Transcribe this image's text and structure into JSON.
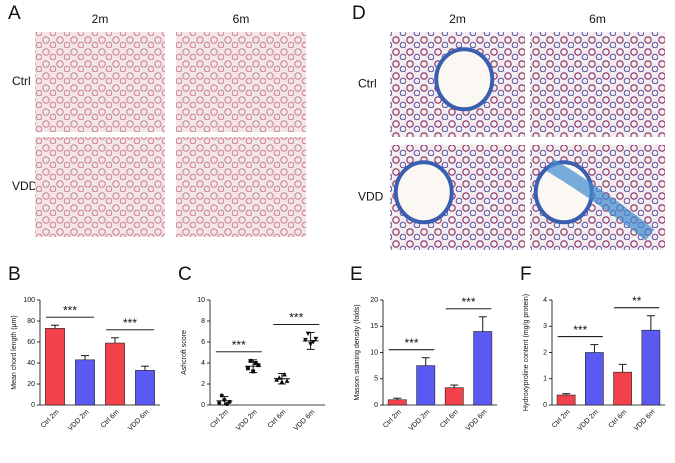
{
  "micrographs": [
    {
      "label": "A",
      "columns": [
        "2m",
        "6m"
      ],
      "rows": [
        "Ctrl",
        "VDD"
      ]
    },
    {
      "label": "D",
      "columns": [
        "2m",
        "6m"
      ],
      "rows": [
        "Ctrl",
        "VDD"
      ]
    }
  ],
  "chart_data": [
    {
      "type": "bar",
      "panel": "B",
      "ylabel": "Mean chord length (μm)",
      "categories": [
        "Ctrl 2m",
        "VDD 2m",
        "Ctrl 6m",
        "VDD 6m"
      ],
      "values": [
        73,
        43,
        59,
        33
      ],
      "errors": [
        3,
        4,
        5,
        4
      ],
      "colors": [
        "#f2414b",
        "#5a5af2",
        "#f2414b",
        "#5a5af2"
      ],
      "ylim": [
        0,
        100
      ],
      "yticks": [
        0,
        20,
        40,
        60,
        80,
        100
      ],
      "annotations": [
        {
          "text": "***",
          "from": 0,
          "to": 1
        },
        {
          "text": "***",
          "from": 2,
          "to": 3
        }
      ]
    },
    {
      "type": "dot",
      "panel": "C",
      "ylabel": "Ashcroft score",
      "categories": [
        "Ctrl 2m",
        "VDD 2m",
        "Ctrl 6m",
        "VDD 6m"
      ],
      "points": [
        [
          0.2,
          0.9,
          0.5,
          0.1,
          0.3
        ],
        [
          3.5,
          4.2,
          3.2,
          4.0,
          3.8
        ],
        [
          2.4,
          2.6,
          2.2,
          2.9,
          2.3
        ],
        [
          6.2,
          6.8,
          5.8,
          6.0,
          6.3
        ]
      ],
      "values": [
        0.4,
        3.7,
        2.5,
        6.1
      ],
      "errors": [
        0.4,
        0.6,
        0.5,
        0.8
      ],
      "markers": [
        "circle",
        "square",
        "triangle",
        "triangle-down"
      ],
      "ylim": [
        0,
        10
      ],
      "yticks": [
        0,
        2,
        4,
        6,
        8,
        10
      ],
      "annotations": [
        {
          "text": "***",
          "from": 0,
          "to": 1
        },
        {
          "text": "***",
          "from": 2,
          "to": 3
        }
      ]
    },
    {
      "type": "bar",
      "panel": "E",
      "ylabel": "Masson staining density (folds)",
      "categories": [
        "Ctrl 2m",
        "VDD 2m",
        "Ctrl 6m",
        "VDD 6m"
      ],
      "values": [
        1,
        7.5,
        3.3,
        14
      ],
      "errors": [
        0.3,
        1.5,
        0.5,
        2.8
      ],
      "colors": [
        "#f2414b",
        "#5a5af2",
        "#f2414b",
        "#5a5af2"
      ],
      "ylim": [
        0,
        20
      ],
      "yticks": [
        0,
        5,
        10,
        15,
        20
      ],
      "annotations": [
        {
          "text": "***",
          "from": 0,
          "to": 1
        },
        {
          "text": "***",
          "from": 2,
          "to": 3
        }
      ]
    },
    {
      "type": "bar",
      "panel": "F",
      "ylabel": "Hydroxyproline content (mg/g protein)",
      "categories": [
        "Ctrl 2m",
        "VDD 2m",
        "Ctrl 6m",
        "VDD 6m"
      ],
      "values": [
        0.38,
        2.0,
        1.25,
        2.85
      ],
      "errors": [
        0.05,
        0.3,
        0.3,
        0.55
      ],
      "colors": [
        "#f2414b",
        "#5a5af2",
        "#f2414b",
        "#5a5af2"
      ],
      "ylim": [
        0,
        4
      ],
      "yticks": [
        0,
        1,
        2,
        3,
        4
      ],
      "annotations": [
        {
          "text": "***",
          "from": 0,
          "to": 1
        },
        {
          "text": "**",
          "from": 2,
          "to": 3
        }
      ]
    }
  ]
}
